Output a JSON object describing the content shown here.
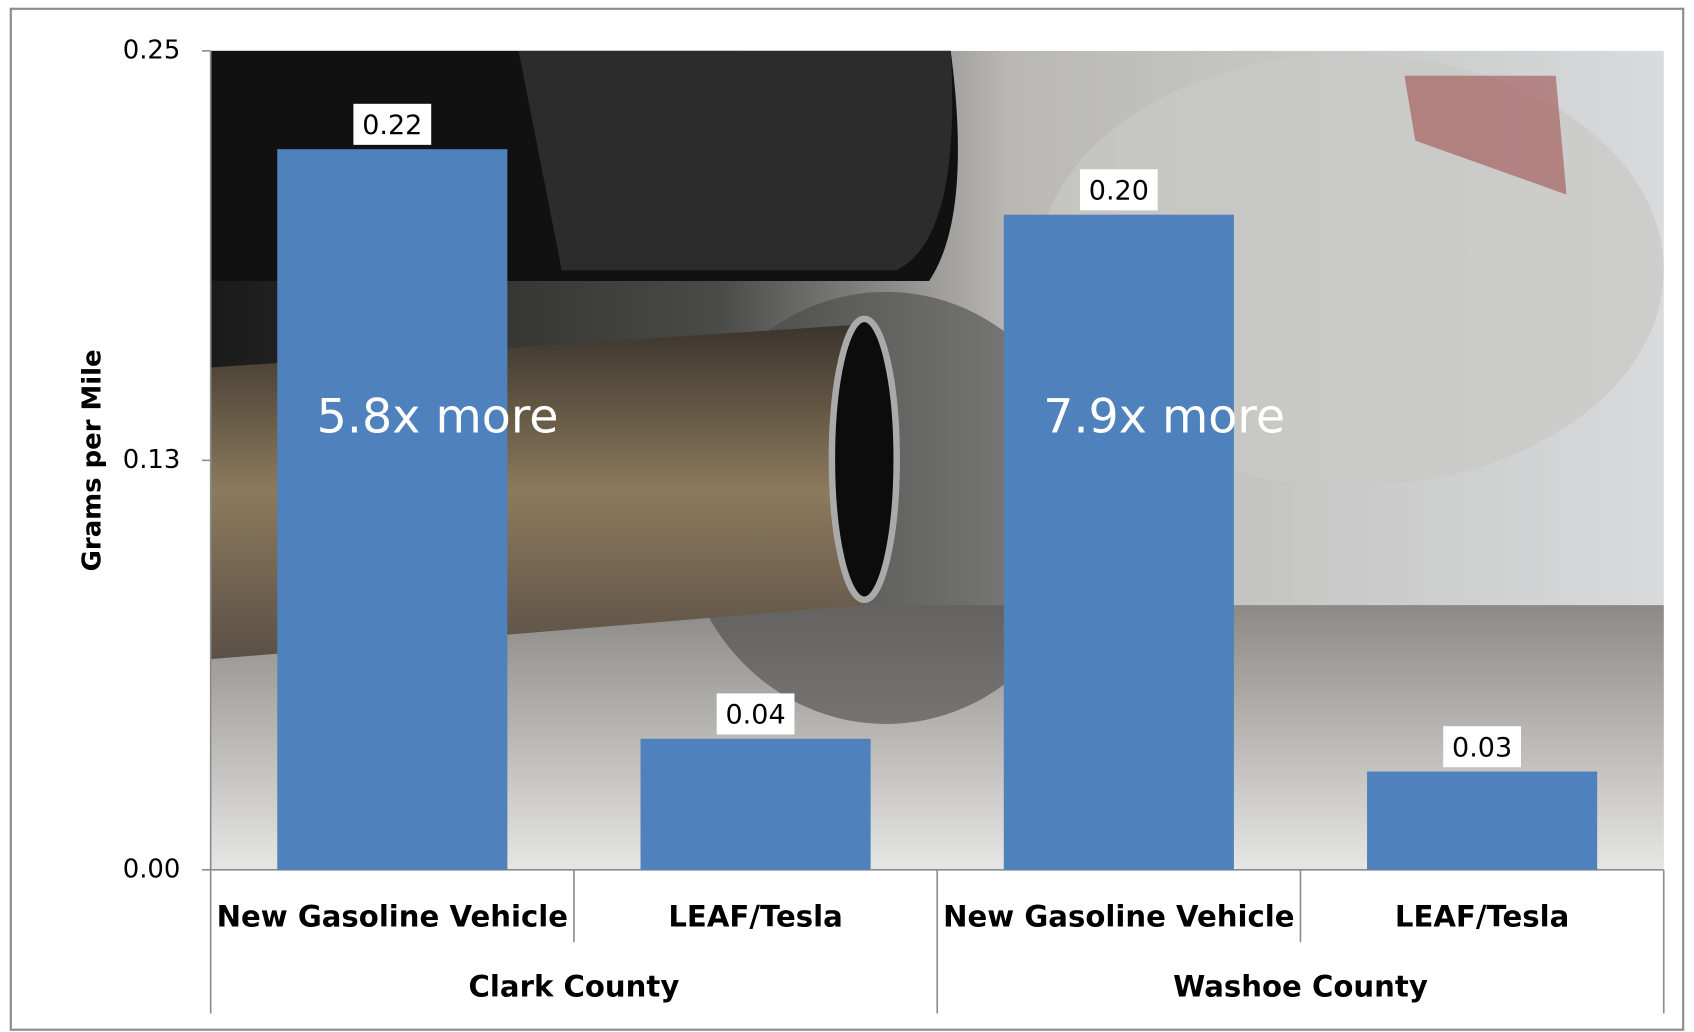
{
  "chart_data": {
    "type": "bar",
    "categories": [
      "New Gasoline Vehicle",
      "LEAF/Tesla",
      "New Gasoline Vehicle",
      "LEAF/Tesla"
    ],
    "groups": [
      "Clark County",
      "Washoe County"
    ],
    "values": [
      0.22,
      0.04,
      0.2,
      0.03
    ],
    "value_labels": [
      "0.22",
      "0.04",
      "0.20",
      "0.03"
    ],
    "color": "#4f81bd",
    "y_label": "Grams per Mile",
    "annotations": [
      "5.8x more",
      "7.9x more"
    ],
    "ylim": [
      0,
      0.25
    ],
    "yticks": [
      {
        "value": 0,
        "label": "0.00"
      },
      {
        "value": 0.125,
        "label": "0.13"
      },
      {
        "value": 0.25,
        "label": "0.25"
      }
    ]
  }
}
